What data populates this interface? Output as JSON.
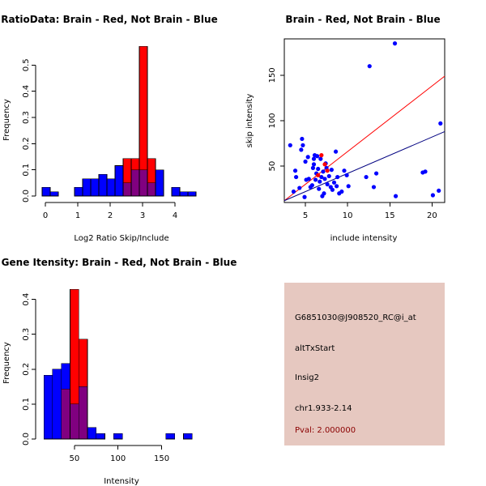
{
  "chart_data": [
    {
      "type": "histogram",
      "title": "RatioData: Brain - Red, Not Brain - Blue",
      "xlabel": "Log2 Ratio Skip/Include",
      "ylabel": "Frequency",
      "xlim": [
        -0.1,
        4.8
      ],
      "ylim": [
        0,
        0.6
      ],
      "x_ticks": [
        0,
        1,
        2,
        3,
        4
      ],
      "y_ticks": [
        0.0,
        0.1,
        0.2,
        0.3,
        0.4,
        0.5
      ],
      "bin_width": 0.25,
      "series": [
        {
          "name": "Not Brain",
          "color": "#0000ff",
          "bins": [
            [
              -0.1,
              0.15,
              0.033
            ],
            [
              0.15,
              0.4,
              0.016
            ],
            [
              0.9,
              1.15,
              0.033
            ],
            [
              1.15,
              1.4,
              0.066
            ],
            [
              1.4,
              1.65,
              0.066
            ],
            [
              1.65,
              1.9,
              0.083
            ],
            [
              1.9,
              2.15,
              0.066
            ],
            [
              2.15,
              2.4,
              0.116
            ],
            [
              2.4,
              2.65,
              0.05
            ],
            [
              2.65,
              2.9,
              0.1
            ],
            [
              2.9,
              3.15,
              0.1
            ],
            [
              3.15,
              3.4,
              0.05
            ],
            [
              3.4,
              3.65,
              0.1
            ],
            [
              3.9,
              4.15,
              0.033
            ],
            [
              4.15,
              4.4,
              0.016
            ],
            [
              4.4,
              4.65,
              0.016
            ]
          ]
        },
        {
          "name": "Brain",
          "color": "#ff0000",
          "bins": [
            [
              2.25,
              2.5,
              0.0
            ],
            [
              2.4,
              2.65,
              0.143
            ],
            [
              2.65,
              2.9,
              0.143
            ],
            [
              2.9,
              3.15,
              0.571
            ],
            [
              3.15,
              3.4,
              0.143
            ]
          ]
        }
      ],
      "overlap_color": "#800080"
    },
    {
      "type": "scatter",
      "title": "Brain - Red, Not Brain - Blue",
      "xlabel": "include intensity",
      "ylabel": "skip intensity",
      "xlim": [
        2.5,
        21.5
      ],
      "ylim": [
        10,
        190
      ],
      "x_ticks": [
        5,
        10,
        15,
        20
      ],
      "y_ticks": [
        50,
        100,
        150
      ],
      "series": [
        {
          "name": "Not Brain",
          "color": "#0000ff",
          "points": [
            [
              3.2,
              73
            ],
            [
              3.8,
              45
            ],
            [
              3.9,
              38
            ],
            [
              4.3,
              26
            ],
            [
              4.5,
              68
            ],
            [
              4.6,
              80
            ],
            [
              4.7,
              73
            ],
            [
              4.9,
              16
            ],
            [
              5.0,
              55
            ],
            [
              5.1,
              35
            ],
            [
              5.3,
              60
            ],
            [
              5.4,
              36
            ],
            [
              5.6,
              27
            ],
            [
              5.8,
              29
            ],
            [
              5.9,
              48
            ],
            [
              6.0,
              58
            ],
            [
              6.1,
              62
            ],
            [
              6.2,
              35
            ],
            [
              6.3,
              42
            ],
            [
              6.4,
              61
            ],
            [
              6.5,
              47
            ],
            [
              6.6,
              25
            ],
            [
              6.7,
              33
            ],
            [
              6.8,
              58
            ],
            [
              6.9,
              38
            ],
            [
              7.0,
              17
            ],
            [
              7.1,
              44
            ],
            [
              7.2,
              20
            ],
            [
              7.3,
              36
            ],
            [
              7.4,
              53
            ],
            [
              7.6,
              30
            ],
            [
              7.8,
              39
            ],
            [
              8.0,
              27
            ],
            [
              8.1,
              46
            ],
            [
              8.2,
              24
            ],
            [
              8.4,
              32
            ],
            [
              8.6,
              66
            ],
            [
              8.8,
              38
            ],
            [
              9.0,
              20
            ],
            [
              9.3,
              22
            ],
            [
              9.6,
              45
            ],
            [
              10.1,
              28
            ],
            [
              12.2,
              38
            ],
            [
              12.6,
              160
            ],
            [
              13.1,
              27
            ],
            [
              13.4,
              42
            ],
            [
              15.6,
              185
            ],
            [
              15.7,
              17
            ],
            [
              18.9,
              43
            ],
            [
              19.2,
              44
            ],
            [
              20.1,
              18
            ],
            [
              20.8,
              23
            ],
            [
              21.0,
              97
            ],
            [
              3.6,
              22
            ],
            [
              6.0,
              52
            ],
            [
              7.5,
              48
            ],
            [
              8.7,
              28
            ],
            [
              9.9,
              40
            ]
          ]
        },
        {
          "name": "Brain",
          "color": "#ff0000",
          "points": [
            [
              6.5,
              40
            ],
            [
              6.9,
              62
            ],
            [
              7.3,
              52
            ],
            [
              7.6,
              45
            ]
          ]
        }
      ],
      "fit_lines": [
        {
          "name": "Brain fit",
          "color": "#ff0000",
          "x": [
            2.5,
            21.5
          ],
          "y": [
            12,
            149
          ]
        },
        {
          "name": "Not Brain fit",
          "color": "#000080",
          "x": [
            2.5,
            21.5
          ],
          "y": [
            12,
            88
          ]
        }
      ]
    },
    {
      "type": "histogram",
      "title": "Gene Itensity: Brain - Red, Not Brain - Blue",
      "xlabel": "Intensity",
      "ylabel": "Frequency",
      "xlim": [
        13,
        195
      ],
      "ylim": [
        0,
        0.45
      ],
      "x_ticks": [
        50,
        100,
        150
      ],
      "y_ticks": [
        0.0,
        0.1,
        0.2,
        0.3,
        0.4
      ],
      "bin_width": 10,
      "series": [
        {
          "name": "Not Brain",
          "color": "#0000ff",
          "bins": [
            [
              15,
              25,
              0.183
            ],
            [
              25,
              35,
              0.2
            ],
            [
              35,
              45,
              0.216
            ],
            [
              45,
              55,
              0.1
            ],
            [
              55,
              65,
              0.15
            ],
            [
              65,
              75,
              0.033
            ],
            [
              75,
              85,
              0.016
            ],
            [
              85,
              95,
              0.0
            ],
            [
              95,
              105,
              0.016
            ],
            [
              155,
              165,
              0.016
            ],
            [
              175,
              185,
              0.016
            ]
          ]
        },
        {
          "name": "Brain",
          "color": "#ff0000",
          "bins": [
            [
              35,
              45,
              0.143
            ],
            [
              45,
              55,
              0.429
            ],
            [
              55,
              65,
              0.286
            ],
            [
              65,
              75,
              0.0
            ]
          ]
        }
      ],
      "overlap_color": "#800080"
    }
  ],
  "info": {
    "probe_id": "G6851030@J908520_RC@i_at",
    "event_type": "altTxStart",
    "gene": "Insig2",
    "location": "chr1.933-2.14",
    "pval_text": "Pval: 2.000000",
    "panel_color": "#e6c8c0",
    "pval_color": "#8b0000"
  }
}
